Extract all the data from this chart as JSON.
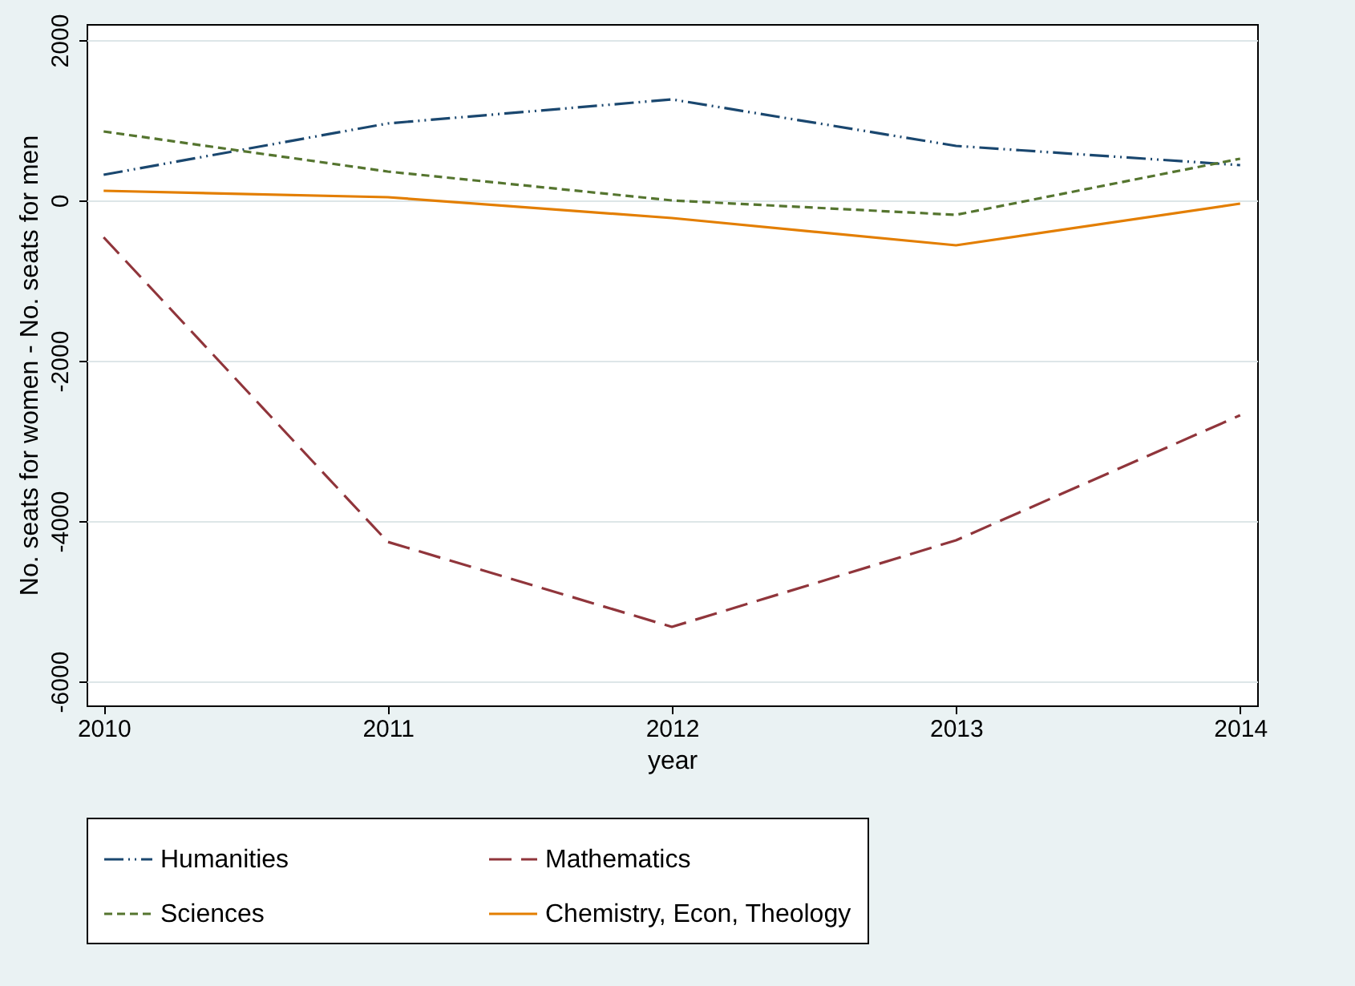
{
  "chart_data": {
    "type": "line",
    "xlabel": "year",
    "ylabel": "No. seats for women - No. seats for men",
    "x": [
      2010,
      2011,
      2012,
      2013,
      2014
    ],
    "xlim": [
      2009.94,
      2014.06
    ],
    "xticks": [
      2010,
      2011,
      2012,
      2013,
      2014
    ],
    "ylim": [
      -6300,
      2200
    ],
    "yticks": [
      -6000,
      -4000,
      -2000,
      0,
      2000
    ],
    "grid": "y",
    "legend": "bottom",
    "marker": "none",
    "series": [
      {
        "name": "Humanities",
        "color": "#1a476f",
        "line_style": "dashdotdot",
        "values": [
          320,
          960,
          1260,
          680,
          440
        ]
      },
      {
        "name": "Mathematics",
        "color": "#90353b",
        "line_style": "longdash",
        "values": [
          -460,
          -4260,
          -5320,
          -4240,
          -2680
        ]
      },
      {
        "name": "Sciences",
        "color": "#55752f",
        "line_style": "dashed",
        "values": [
          860,
          360,
          0,
          -180,
          520
        ]
      },
      {
        "name": "Chemistry, Econ, Theology",
        "color": "#e37e00",
        "line_style": "solid",
        "values": [
          120,
          40,
          -220,
          -560,
          -40
        ]
      }
    ]
  }
}
